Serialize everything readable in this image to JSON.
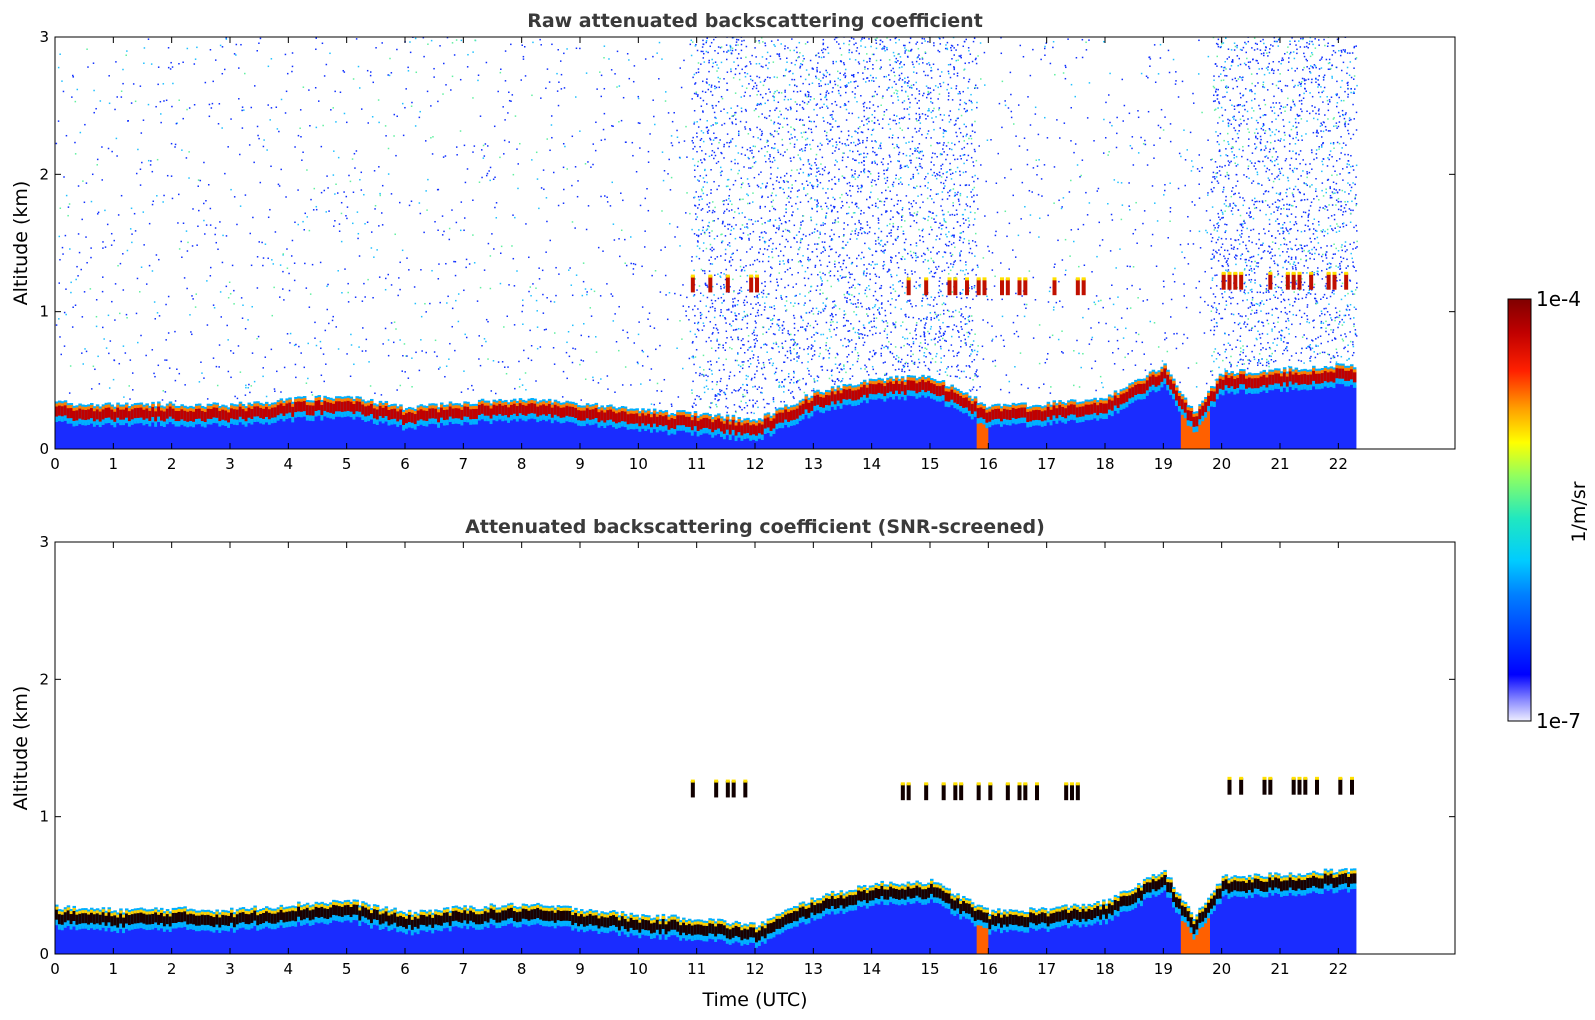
{
  "chart_data": [
    {
      "type": "heatmap",
      "title": "Raw attenuated backscattering coefficient",
      "xlabel": "",
      "ylabel": "Altitude (km)",
      "xlim": [
        0,
        24
      ],
      "ylim": [
        0,
        3
      ],
      "x_ticks": [
        "0",
        "1",
        "2",
        "3",
        "4",
        "5",
        "6",
        "7",
        "8",
        "9",
        "10",
        "11",
        "12",
        "13",
        "14",
        "15",
        "16",
        "17",
        "18",
        "19",
        "20",
        "21",
        "22"
      ],
      "y_ticks": [
        "0",
        "1",
        "2",
        "3"
      ],
      "data_end_hour": 22.3,
      "noisy_periods_hours": [
        [
          10.9,
          12.6
        ],
        [
          12.6,
          15.8
        ],
        [
          19.8,
          22.3
        ]
      ],
      "data_gaps_hours": [
        [
          15.8,
          16.0
        ],
        [
          19.3,
          19.8
        ]
      ],
      "boundary_layer_top_km": [
        {
          "x": 0,
          "y": 0.28
        },
        {
          "x": 1,
          "y": 0.26
        },
        {
          "x": 2,
          "y": 0.27
        },
        {
          "x": 3,
          "y": 0.26
        },
        {
          "x": 4,
          "y": 0.3
        },
        {
          "x": 5,
          "y": 0.33
        },
        {
          "x": 6,
          "y": 0.24
        },
        {
          "x": 7,
          "y": 0.28
        },
        {
          "x": 8,
          "y": 0.3
        },
        {
          "x": 9,
          "y": 0.27
        },
        {
          "x": 10,
          "y": 0.22
        },
        {
          "x": 11,
          "y": 0.2
        },
        {
          "x": 12,
          "y": 0.15
        },
        {
          "x": 13,
          "y": 0.35
        },
        {
          "x": 14,
          "y": 0.45
        },
        {
          "x": 15,
          "y": 0.47
        },
        {
          "x": 16,
          "y": 0.25
        },
        {
          "x": 17,
          "y": 0.27
        },
        {
          "x": 18,
          "y": 0.32
        },
        {
          "x": 19,
          "y": 0.55
        },
        {
          "x": 19.5,
          "y": 0.2
        },
        {
          "x": 20,
          "y": 0.5
        },
        {
          "x": 21,
          "y": 0.52
        },
        {
          "x": 22,
          "y": 0.55
        }
      ],
      "cloud_layers": [
        {
          "x_start": 10.9,
          "x_end": 12.0,
          "altitude_km": 1.2
        },
        {
          "x_start": 14.5,
          "x_end": 18.0,
          "altitude_km": 1.18
        },
        {
          "x_start": 20.0,
          "x_end": 22.3,
          "altitude_km": 1.22
        }
      ]
    },
    {
      "type": "heatmap",
      "title": "Attenuated backscattering coefficient (SNR-screened)",
      "xlabel": "Time (UTC)",
      "ylabel": "Altitude (km)",
      "xlim": [
        0,
        24
      ],
      "ylim": [
        0,
        3
      ],
      "x_ticks": [
        "0",
        "1",
        "2",
        "3",
        "4",
        "5",
        "6",
        "7",
        "8",
        "9",
        "10",
        "11",
        "12",
        "13",
        "14",
        "15",
        "16",
        "17",
        "18",
        "19",
        "20",
        "21",
        "22"
      ],
      "y_ticks": [
        "0",
        "1",
        "2",
        "3"
      ],
      "data_end_hour": 22.3
    }
  ],
  "colorbar": {
    "max_label": "1e-4",
    "min_label": "1e-7",
    "label": "1/m/sr",
    "colormap": "jet"
  }
}
